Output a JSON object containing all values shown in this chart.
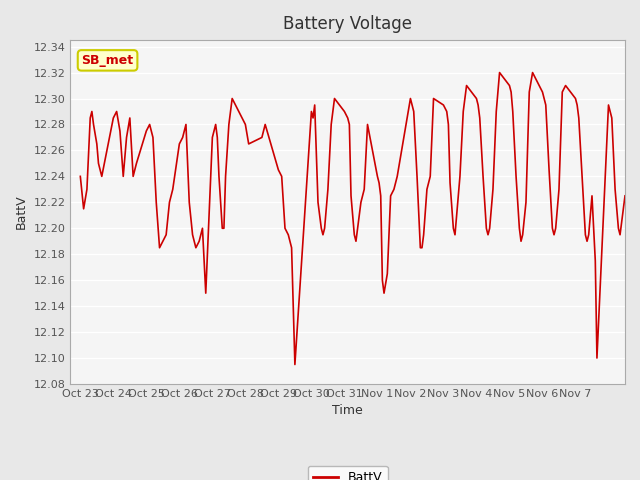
{
  "title": "Battery Voltage",
  "xlabel": "Time",
  "ylabel": "BattV",
  "legend_label": "BattV",
  "annotation_text": "SB_met",
  "ylim": [
    12.08,
    12.345
  ],
  "yticks": [
    12.08,
    12.1,
    12.12,
    12.14,
    12.16,
    12.18,
    12.2,
    12.22,
    12.24,
    12.26,
    12.28,
    12.3,
    12.32,
    12.34
  ],
  "line_color": "#CC0000",
  "bg_color": "#E8E8E8",
  "plot_bg": "#F5F5F5",
  "grid_color": "#FFFFFF",
  "annotation_bg": "#FFFFCC",
  "annotation_border": "#CCCC00",
  "annotation_text_color": "#CC0000",
  "x_tick_labels": [
    "Oct 23",
    "Oct 24",
    "Oct 25",
    "Oct 26",
    "Oct 27",
    "Oct 28",
    "Oct 29",
    "Oct 30",
    "Oct 31",
    "Nov 1",
    "Nov 2",
    "Nov 3",
    "Nov 4",
    "Nov 5",
    "Nov 6",
    "Nov 7"
  ],
  "time_series": [
    0.0,
    12.24,
    0.1,
    12.215,
    0.2,
    12.23,
    0.3,
    12.285,
    0.35,
    12.29,
    0.4,
    12.28,
    0.5,
    12.265,
    0.55,
    12.25,
    0.6,
    12.245,
    0.65,
    12.24,
    1.0,
    12.285,
    1.1,
    12.29,
    1.2,
    12.275,
    1.3,
    12.24,
    1.4,
    12.27,
    1.5,
    12.285,
    1.6,
    12.24,
    1.7,
    12.25,
    2.0,
    12.275,
    2.1,
    12.28,
    2.2,
    12.27,
    2.3,
    12.22,
    2.4,
    12.185,
    2.5,
    12.19,
    2.6,
    12.195,
    2.7,
    12.22,
    2.8,
    12.23,
    3.0,
    12.265,
    3.1,
    12.27,
    3.2,
    12.28,
    3.3,
    12.22,
    3.4,
    12.195,
    3.5,
    12.185,
    3.6,
    12.19,
    3.7,
    12.2,
    3.8,
    12.15,
    4.0,
    12.27,
    4.1,
    12.28,
    4.15,
    12.27,
    4.2,
    12.24,
    4.3,
    12.2,
    4.35,
    12.2,
    4.4,
    12.24,
    4.5,
    12.28,
    4.6,
    12.3,
    5.0,
    12.28,
    5.1,
    12.265,
    5.5,
    12.27,
    5.6,
    12.28,
    6.0,
    12.245,
    6.1,
    12.24,
    6.2,
    12.2,
    6.3,
    12.195,
    6.4,
    12.185,
    6.5,
    12.095,
    7.0,
    12.29,
    7.05,
    12.285,
    7.1,
    12.295,
    7.2,
    12.22,
    7.3,
    12.2,
    7.35,
    12.195,
    7.4,
    12.2,
    7.45,
    12.215,
    7.5,
    12.23,
    7.6,
    12.28,
    7.7,
    12.3,
    8.0,
    12.29,
    8.1,
    12.285,
    8.15,
    12.28,
    8.2,
    12.225,
    8.3,
    12.195,
    8.35,
    12.19,
    8.4,
    12.2,
    8.5,
    12.22,
    8.6,
    12.23,
    8.7,
    12.28,
    9.0,
    12.24,
    9.05,
    12.235,
    9.1,
    12.225,
    9.15,
    12.16,
    9.2,
    12.15,
    9.3,
    12.165,
    9.4,
    12.225,
    9.5,
    12.23,
    9.6,
    12.24,
    10.0,
    12.3,
    10.05,
    12.295,
    10.1,
    12.29,
    10.2,
    12.24,
    10.3,
    12.185,
    10.35,
    12.185,
    10.4,
    12.195,
    10.5,
    12.23,
    10.6,
    12.24,
    10.7,
    12.3,
    11.0,
    12.295,
    11.1,
    12.29,
    11.15,
    12.28,
    11.2,
    12.235,
    11.3,
    12.2,
    11.35,
    12.195,
    11.4,
    12.21,
    11.5,
    12.24,
    11.6,
    12.29,
    11.7,
    12.31,
    12.0,
    12.3,
    12.05,
    12.295,
    12.1,
    12.285,
    12.2,
    12.24,
    12.3,
    12.2,
    12.35,
    12.195,
    12.4,
    12.2,
    12.5,
    12.23,
    12.6,
    12.29,
    12.7,
    12.32,
    13.0,
    12.31,
    13.05,
    12.305,
    13.1,
    12.29,
    13.2,
    12.24,
    13.3,
    12.2,
    13.35,
    12.19,
    13.4,
    12.195,
    13.5,
    12.22,
    13.6,
    12.305,
    13.7,
    12.32,
    14.0,
    12.305,
    14.05,
    12.3,
    14.1,
    12.295,
    14.2,
    12.245,
    14.3,
    12.2,
    14.35,
    12.195,
    14.4,
    12.2,
    14.5,
    12.23,
    14.6,
    12.305,
    14.7,
    12.31,
    15.0,
    12.3,
    15.05,
    12.295,
    15.1,
    12.285,
    15.2,
    12.24,
    15.3,
    12.195,
    15.35,
    12.19,
    15.4,
    12.195,
    15.5,
    12.225,
    15.6,
    12.175,
    15.65,
    12.1,
    16.0,
    12.295,
    16.05,
    12.29,
    16.1,
    12.285,
    16.2,
    12.23,
    16.3,
    12.2,
    16.35,
    12.195,
    16.4,
    12.205,
    16.5,
    12.225
  ]
}
